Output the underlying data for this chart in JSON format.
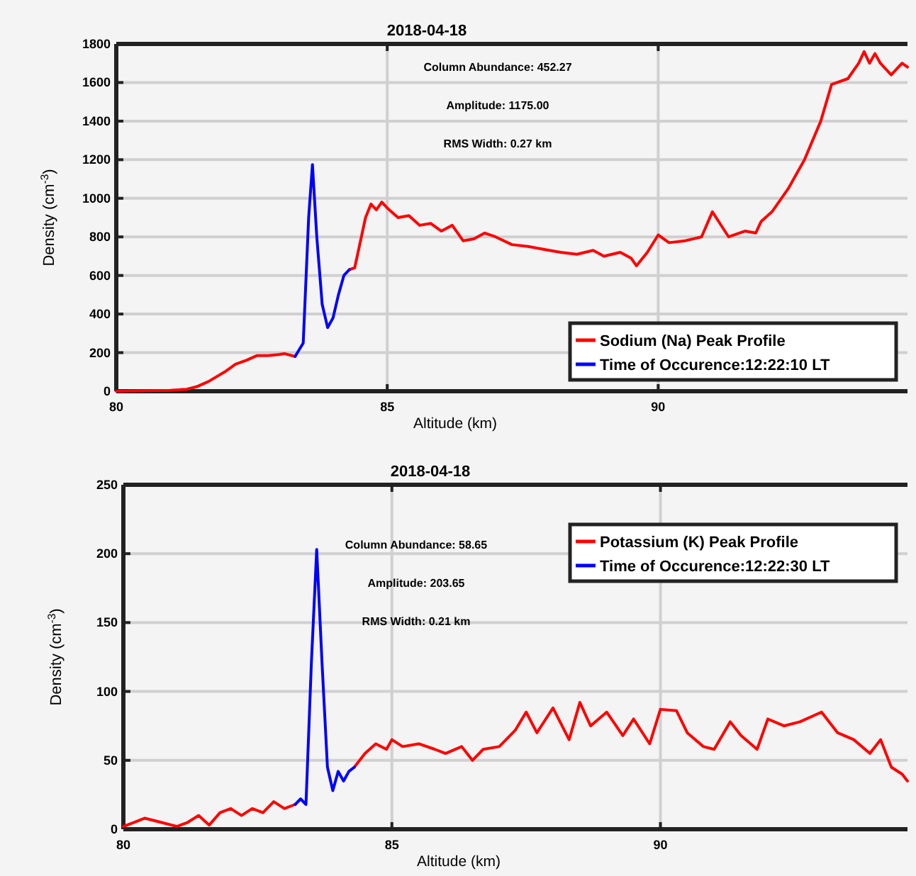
{
  "chart_data": [
    {
      "type": "line",
      "title": "2018-04-18",
      "xlabel": "Altitude (km)",
      "ylabel": "Density (cm$^{-3}$)",
      "xlim": [
        80,
        94.6
      ],
      "ylim": [
        0,
        1800
      ],
      "xticks": [
        80,
        85,
        90
      ],
      "yticks": [
        0,
        200,
        400,
        600,
        800,
        1000,
        1200,
        1400,
        1600,
        1800
      ],
      "grid": true,
      "legend": "bottom right",
      "annotations": [
        "Column Abundance: 452.27",
        "Amplitude: 1175.00",
        "RMS Width: 0.27 km"
      ],
      "series": [
        {
          "name": "Sodium (Na) Peak Profile",
          "color": "#ff0000",
          "x": [
            80,
            80.5,
            81,
            81.3,
            81.5,
            81.7,
            82,
            82.2,
            82.4,
            82.6,
            82.8,
            83,
            83.1,
            83.3,
            83.8,
            84.3,
            84.4,
            84.6,
            84.7,
            84.8,
            84.9,
            85,
            85.2,
            85.4,
            85.6,
            85.8,
            86,
            86.2,
            86.4,
            86.6,
            86.8,
            87,
            87.3,
            87.6,
            87.9,
            88.2,
            88.5,
            88.8,
            89,
            89.3,
            89.5,
            89.6,
            89.8,
            90,
            90.2,
            90.5,
            90.8,
            91,
            91.3,
            91.6,
            91.8,
            91.9,
            92.1,
            92.4,
            92.7,
            93,
            93.2,
            93.5,
            93.7,
            93.8,
            93.9,
            94,
            94.1,
            94.3,
            94.5,
            94.6
          ],
          "values": [
            0,
            3,
            5,
            10,
            25,
            50,
            100,
            140,
            160,
            185,
            185,
            190,
            195,
            180,
            null,
            630,
            640,
            900,
            970,
            940,
            980,
            950,
            900,
            910,
            860,
            870,
            830,
            860,
            780,
            790,
            820,
            800,
            760,
            750,
            735,
            720,
            710,
            730,
            700,
            720,
            690,
            650,
            720,
            810,
            770,
            780,
            800,
            930,
            800,
            830,
            820,
            880,
            930,
            1050,
            1200,
            1400,
            1590,
            1620,
            1700,
            1760,
            1700,
            1750,
            1700,
            1640,
            1700,
            1680
          ]
        },
        {
          "name": "Time of Occurence:12:22:10 LT",
          "color": "#0000ff",
          "x": [
            83.3,
            83.45,
            83.55,
            83.62,
            83.7,
            83.8,
            83.9,
            84.0,
            84.1,
            84.2,
            84.3
          ],
          "values": [
            180,
            250,
            900,
            1175,
            800,
            450,
            330,
            380,
            500,
            600,
            630
          ]
        }
      ]
    },
    {
      "type": "line",
      "title": "2018-04-18",
      "xlabel": "Altitude (km)",
      "ylabel": "Density (cm$^{-3}$)",
      "xlim": [
        80,
        94.6
      ],
      "ylim": [
        0,
        250
      ],
      "xticks": [
        80,
        85,
        90
      ],
      "yticks": [
        0,
        50,
        100,
        150,
        200,
        250
      ],
      "grid": true,
      "legend": "top right",
      "annotations": [
        "Column Abundance: 58.65",
        "Amplitude: 203.65",
        "RMS Width: 0.21 km"
      ],
      "series": [
        {
          "name": "Potassium (K) Peak Profile",
          "color": "#ff0000",
          "x": [
            80,
            80.2,
            80.4,
            80.7,
            81,
            81.2,
            81.4,
            81.6,
            81.8,
            82,
            82.2,
            82.4,
            82.6,
            82.8,
            83,
            83.2,
            83.7,
            84.3,
            84.5,
            84.7,
            84.9,
            85,
            85.2,
            85.5,
            85.8,
            86,
            86.3,
            86.5,
            86.7,
            87,
            87.3,
            87.5,
            87.7,
            88,
            88.3,
            88.5,
            88.7,
            89,
            89.3,
            89.5,
            89.8,
            90,
            90.3,
            90.5,
            90.8,
            91,
            91.3,
            91.5,
            91.8,
            92,
            92.3,
            92.6,
            93,
            93.3,
            93.6,
            93.9,
            94.1,
            94.3,
            94.5,
            94.6
          ],
          "values": [
            2,
            5,
            8,
            5,
            2,
            5,
            10,
            3,
            12,
            15,
            10,
            15,
            12,
            20,
            15,
            18,
            null,
            45,
            55,
            62,
            58,
            65,
            60,
            62,
            58,
            55,
            60,
            50,
            58,
            60,
            72,
            85,
            70,
            88,
            65,
            92,
            75,
            85,
            68,
            80,
            62,
            87,
            86,
            70,
            60,
            58,
            78,
            68,
            58,
            80,
            75,
            78,
            85,
            70,
            65,
            55,
            65,
            45,
            40,
            35
          ]
        },
        {
          "name": "Time of Occurence:12:22:30 LT",
          "color": "#0000ff",
          "x": [
            83.2,
            83.3,
            83.4,
            83.5,
            83.6,
            83.7,
            83.8,
            83.9,
            84.0,
            84.1,
            84.2,
            84.3
          ],
          "values": [
            18,
            22,
            18,
            120,
            203,
            120,
            45,
            28,
            42,
            35,
            42,
            45
          ]
        }
      ]
    }
  ]
}
